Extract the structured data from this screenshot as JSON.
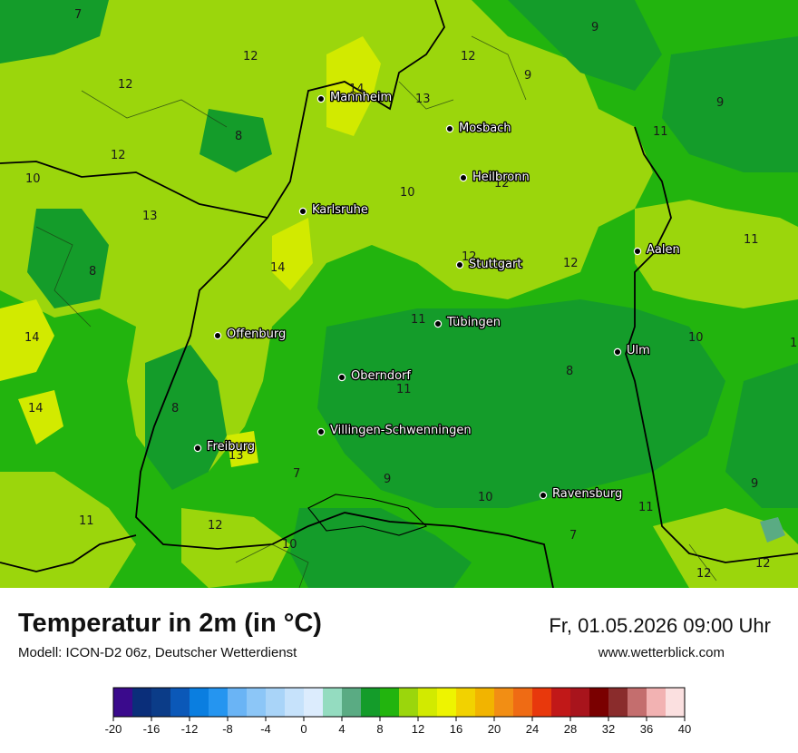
{
  "title": "Temperatur in 2m (in °C)",
  "model": "Modell: ICON-D2 06z, Deutscher Wetterdienst",
  "datetime": "Fr, 01.05.2026 09:00 Uhr",
  "website": "www.wetterblick.com",
  "cities": [
    {
      "name": "Mannheim"
    },
    {
      "name": "Mosbach"
    },
    {
      "name": "Heilbronn"
    },
    {
      "name": "Karlsruhe"
    },
    {
      "name": "Aalen"
    },
    {
      "name": "Stuttgart"
    },
    {
      "name": "Tübingen"
    },
    {
      "name": "Offenburg"
    },
    {
      "name": "Ulm"
    },
    {
      "name": "Oberndorf"
    },
    {
      "name": "Villingen-Schwenningen"
    },
    {
      "name": "Freiburg"
    },
    {
      "name": "Ravensburg"
    }
  ],
  "isotherm_labels": [
    "7",
    "12",
    "12",
    "14",
    "13",
    "12",
    "9",
    "9",
    "9",
    "12",
    "11",
    "10",
    "10",
    "12",
    "13",
    "8",
    "14",
    "12",
    "11",
    "12",
    "14",
    "11",
    "8",
    "10",
    "1",
    "14",
    "8",
    "11",
    "8",
    "13",
    "7",
    "9",
    "10",
    "11",
    "9",
    "11",
    "12",
    "10",
    "7",
    "12",
    "12"
  ],
  "legend": {
    "colors": [
      "#3a0a8c",
      "#0a2e7a",
      "#0b3c88",
      "#0b58b8",
      "#0a7ee0",
      "#2595f0",
      "#6ab4f5",
      "#8cc6f7",
      "#a9d4f8",
      "#c6e2fb",
      "#dcecfd",
      "#94dcc0",
      "#5aab83",
      "#149c2a",
      "#22b40e",
      "#9bd60c",
      "#d2ea00",
      "#eef400",
      "#f2d200",
      "#f2b400",
      "#f28e14",
      "#ef6b14",
      "#e8380c",
      "#c11818",
      "#a8141c",
      "#7a0000",
      "#8a2c2c",
      "#c46e6e",
      "#f2b2b2",
      "#fbe0e0"
    ],
    "ticks": [
      "-20",
      "-16",
      "-12",
      "-8",
      "-4",
      "0",
      "4",
      "8",
      "12",
      "16",
      "20",
      "24",
      "28",
      "32",
      "36",
      "40"
    ]
  }
}
